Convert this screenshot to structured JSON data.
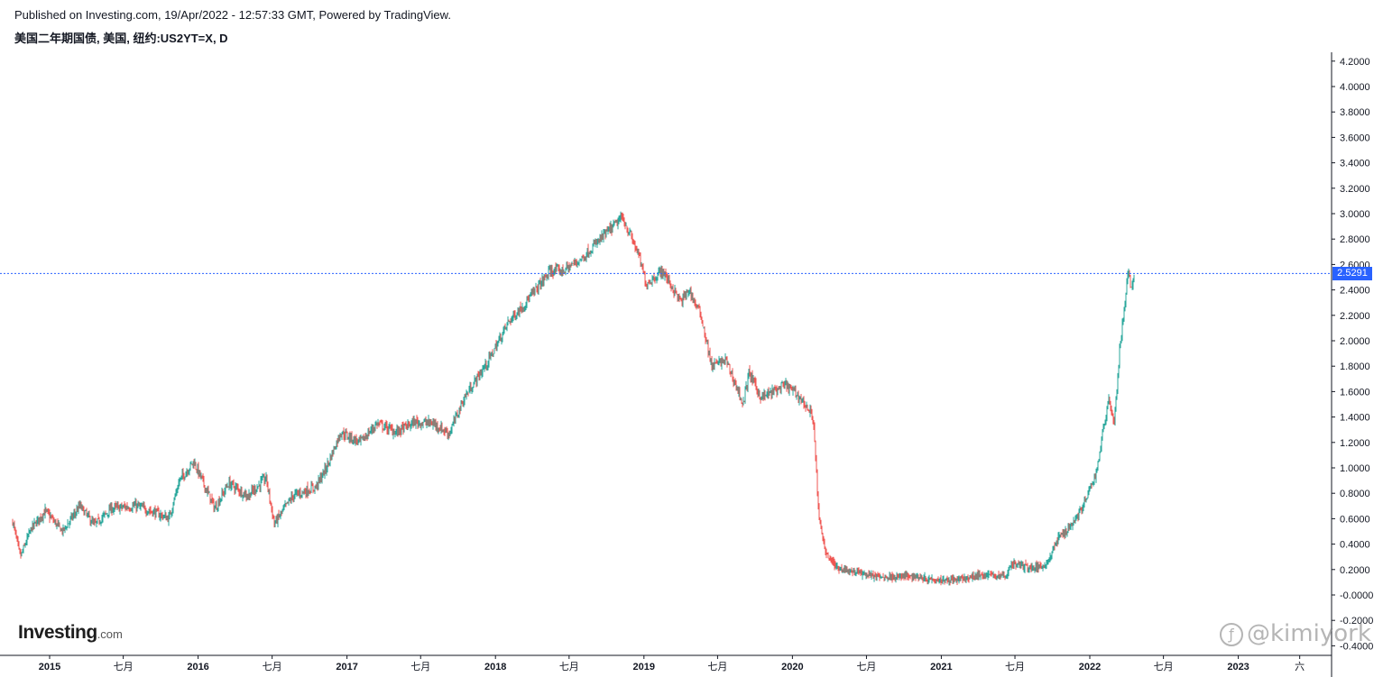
{
  "header": {
    "published": "Published on Investing.com, 19/Apr/2022 - 12:57:33 GMT, Powered by TradingView.",
    "symbol": "美国二年期国债, 美国, 纽约:US2YT=X, D"
  },
  "logo": {
    "brand": "Investing",
    "suffix": ".com"
  },
  "watermark": {
    "text": "@kimiyork"
  },
  "colors": {
    "up": "#26a69a",
    "down": "#ef5350",
    "accent": "#2962ff",
    "axis": "#131722"
  },
  "chart_data": {
    "type": "candlestick",
    "title": "",
    "xlabel": "",
    "ylabel": "",
    "ylim": [
      -0.3,
      4.3
    ],
    "last_price": 2.5291,
    "last_price_label": "2.5291",
    "y_ticks": [
      "4.2000",
      "4.0000",
      "3.8000",
      "3.6000",
      "3.4000",
      "3.2000",
      "3.0000",
      "2.8000",
      "2.6000",
      "2.4000",
      "2.2000",
      "2.0000",
      "1.8000",
      "1.6000",
      "1.4000",
      "1.2000",
      "1.0000",
      "0.8000",
      "0.6000",
      "0.4000",
      "0.2000",
      "-0.0000",
      "-0.2000",
      "-0.4000"
    ],
    "y_tick_values": [
      4.2,
      4.0,
      3.8,
      3.6,
      3.4,
      3.2,
      3.0,
      2.8,
      2.6,
      2.4,
      2.2,
      2.0,
      1.8,
      1.6,
      1.4,
      1.2,
      1.0,
      0.8,
      0.6,
      0.4,
      0.2,
      0.0,
      -0.2,
      -0.4
    ],
    "x_ticks": [
      {
        "label": "2015",
        "date": "2015-01-01",
        "bold": true
      },
      {
        "label": "七月",
        "date": "2015-07-01",
        "bold": false
      },
      {
        "label": "2016",
        "date": "2016-01-01",
        "bold": true
      },
      {
        "label": "七月",
        "date": "2016-07-01",
        "bold": false
      },
      {
        "label": "2017",
        "date": "2017-01-01",
        "bold": true
      },
      {
        "label": "七月",
        "date": "2017-07-01",
        "bold": false
      },
      {
        "label": "2018",
        "date": "2018-01-01",
        "bold": true
      },
      {
        "label": "七月",
        "date": "2018-07-01",
        "bold": false
      },
      {
        "label": "2019",
        "date": "2019-01-01",
        "bold": true
      },
      {
        "label": "七月",
        "date": "2019-07-01",
        "bold": false
      },
      {
        "label": "2020",
        "date": "2020-01-01",
        "bold": true
      },
      {
        "label": "七月",
        "date": "2020-07-01",
        "bold": false
      },
      {
        "label": "2021",
        "date": "2021-01-01",
        "bold": true
      },
      {
        "label": "七月",
        "date": "2021-07-01",
        "bold": false
      },
      {
        "label": "2022",
        "date": "2022-01-01",
        "bold": true
      },
      {
        "label": "七月",
        "date": "2022-07-01",
        "bold": false
      },
      {
        "label": "2023",
        "date": "2023-01-01",
        "bold": true
      },
      {
        "label": "六",
        "date": "2023-06-01",
        "bold": false
      }
    ],
    "series": [
      {
        "style": "candlestick",
        "points": [
          {
            "date": "2014-10-01",
            "close": 0.58
          },
          {
            "date": "2014-10-20",
            "close": 0.3
          },
          {
            "date": "2014-11-15",
            "close": 0.52
          },
          {
            "date": "2014-12-20",
            "close": 0.66
          },
          {
            "date": "2015-02-01",
            "close": 0.5
          },
          {
            "date": "2015-03-15",
            "close": 0.7
          },
          {
            "date": "2015-04-20",
            "close": 0.55
          },
          {
            "date": "2015-06-01",
            "close": 0.68
          },
          {
            "date": "2015-08-01",
            "close": 0.7
          },
          {
            "date": "2015-09-15",
            "close": 0.65
          },
          {
            "date": "2015-10-20",
            "close": 0.6
          },
          {
            "date": "2015-11-15",
            "close": 0.9
          },
          {
            "date": "2015-12-20",
            "close": 1.05
          },
          {
            "date": "2016-02-10",
            "close": 0.68
          },
          {
            "date": "2016-03-15",
            "close": 0.88
          },
          {
            "date": "2016-05-01",
            "close": 0.78
          },
          {
            "date": "2016-06-15",
            "close": 0.92
          },
          {
            "date": "2016-07-05",
            "close": 0.56
          },
          {
            "date": "2016-08-20",
            "close": 0.78
          },
          {
            "date": "2016-10-15",
            "close": 0.85
          },
          {
            "date": "2016-11-10",
            "close": 1.0
          },
          {
            "date": "2016-12-15",
            "close": 1.28
          },
          {
            "date": "2017-02-01",
            "close": 1.2
          },
          {
            "date": "2017-03-15",
            "close": 1.35
          },
          {
            "date": "2017-05-01",
            "close": 1.28
          },
          {
            "date": "2017-06-15",
            "close": 1.36
          },
          {
            "date": "2017-08-01",
            "close": 1.35
          },
          {
            "date": "2017-09-08",
            "close": 1.27
          },
          {
            "date": "2017-10-15",
            "close": 1.55
          },
          {
            "date": "2017-12-15",
            "close": 1.85
          },
          {
            "date": "2018-02-01",
            "close": 2.15
          },
          {
            "date": "2018-03-15",
            "close": 2.3
          },
          {
            "date": "2018-05-15",
            "close": 2.55
          },
          {
            "date": "2018-06-15",
            "close": 2.55
          },
          {
            "date": "2018-08-01",
            "close": 2.65
          },
          {
            "date": "2018-09-15",
            "close": 2.8
          },
          {
            "date": "2018-11-08",
            "close": 2.97
          },
          {
            "date": "2018-12-15",
            "close": 2.7
          },
          {
            "date": "2019-01-05",
            "close": 2.45
          },
          {
            "date": "2019-02-15",
            "close": 2.55
          },
          {
            "date": "2019-04-01",
            "close": 2.3
          },
          {
            "date": "2019-04-20",
            "close": 2.4
          },
          {
            "date": "2019-05-20",
            "close": 2.2
          },
          {
            "date": "2019-06-15",
            "close": 1.8
          },
          {
            "date": "2019-07-20",
            "close": 1.85
          },
          {
            "date": "2019-09-01",
            "close": 1.5
          },
          {
            "date": "2019-09-15",
            "close": 1.75
          },
          {
            "date": "2019-10-15",
            "close": 1.55
          },
          {
            "date": "2019-12-15",
            "close": 1.65
          },
          {
            "date": "2020-01-20",
            "close": 1.55
          },
          {
            "date": "2020-02-20",
            "close": 1.4
          },
          {
            "date": "2020-03-05",
            "close": 0.6
          },
          {
            "date": "2020-03-20",
            "close": 0.35
          },
          {
            "date": "2020-04-15",
            "close": 0.22
          },
          {
            "date": "2020-06-01",
            "close": 0.18
          },
          {
            "date": "2020-08-01",
            "close": 0.14
          },
          {
            "date": "2020-10-15",
            "close": 0.15
          },
          {
            "date": "2020-12-15",
            "close": 0.12
          },
          {
            "date": "2021-02-15",
            "close": 0.12
          },
          {
            "date": "2021-04-15",
            "close": 0.16
          },
          {
            "date": "2021-06-10",
            "close": 0.15
          },
          {
            "date": "2021-06-20",
            "close": 0.25
          },
          {
            "date": "2021-08-15",
            "close": 0.21
          },
          {
            "date": "2021-09-15",
            "close": 0.24
          },
          {
            "date": "2021-10-15",
            "close": 0.45
          },
          {
            "date": "2021-11-15",
            "close": 0.55
          },
          {
            "date": "2021-12-15",
            "close": 0.7
          },
          {
            "date": "2022-01-15",
            "close": 0.95
          },
          {
            "date": "2022-02-15",
            "close": 1.55
          },
          {
            "date": "2022-03-01",
            "close": 1.35
          },
          {
            "date": "2022-03-15",
            "close": 1.95
          },
          {
            "date": "2022-04-01",
            "close": 2.45
          },
          {
            "date": "2022-04-06",
            "close": 2.55
          },
          {
            "date": "2022-04-08",
            "close": 2.45
          },
          {
            "date": "2022-04-12",
            "close": 2.4
          },
          {
            "date": "2022-04-19",
            "close": 2.5291
          }
        ]
      }
    ]
  }
}
